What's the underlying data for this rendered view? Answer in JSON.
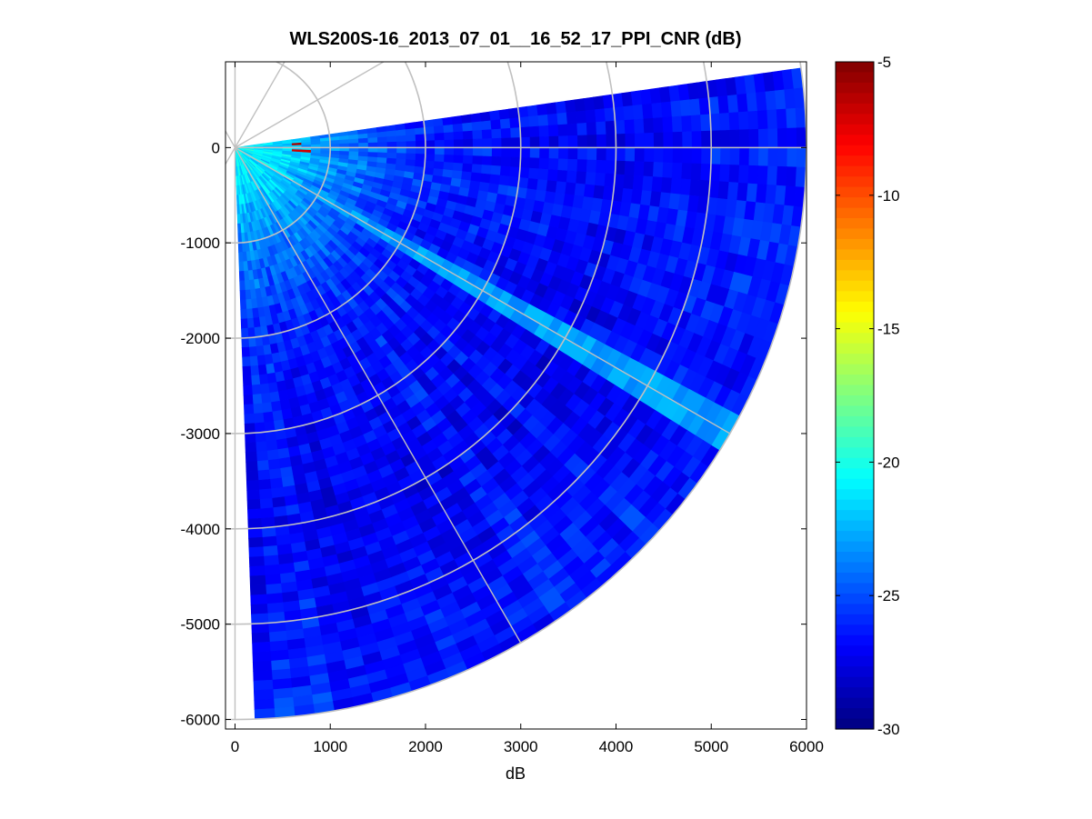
{
  "chart_data": {
    "type": "heatmap",
    "title": "WLS200S-16_2013_07_01__16_52_17_PPI_CNR (dB)",
    "xlabel": "dB",
    "ylabel": "",
    "xlim": [
      -100,
      6000
    ],
    "ylim": [
      -6100,
      900
    ],
    "x_ticks": [
      0,
      1000,
      2000,
      3000,
      4000,
      5000,
      6000
    ],
    "y_ticks": [
      0,
      -1000,
      -2000,
      -3000,
      -4000,
      -5000,
      -6000
    ],
    "x_tick_labels": [
      "0",
      "1000",
      "2000",
      "3000",
      "4000",
      "5000",
      "6000"
    ],
    "y_tick_labels": [
      "0",
      "-1000",
      "-2000",
      "-3000",
      "-4000",
      "-5000",
      "-6000"
    ],
    "scan": {
      "type": "PPI sector",
      "azimuth_start_deg_from_east": 8,
      "azimuth_end_deg_from_east": -88,
      "max_range": 6000
    },
    "polar_grid": {
      "range_rings": [
        1000,
        2000,
        3000,
        4000,
        5000,
        6000
      ],
      "spoke_angles_deg": [
        0,
        30,
        60,
        90,
        120,
        -30,
        -60,
        -90,
        -120
      ]
    },
    "colorbar": {
      "colormap": "jet",
      "clim": [
        -30,
        -5
      ],
      "ticks": [
        -5,
        -10,
        -15,
        -20,
        -25,
        -30
      ],
      "tick_labels": [
        "-5",
        "-10",
        "-15",
        "-20",
        "-25",
        "-30"
      ]
    },
    "cnr_profile_by_range": [
      {
        "range": 0,
        "cnr": -20.5
      },
      {
        "range": 500,
        "cnr": -21.5
      },
      {
        "range": 1000,
        "cnr": -23.5
      },
      {
        "range": 2000,
        "cnr": -26
      },
      {
        "range": 3000,
        "cnr": -26.5
      },
      {
        "range": 4000,
        "cnr": -27
      },
      {
        "range": 5000,
        "cnr": -26.5
      },
      {
        "range": 6000,
        "cnr": -26
      }
    ],
    "features": [
      {
        "description": "hot spot",
        "range": 650,
        "azimuth_deg": 3,
        "cnr": -6
      },
      {
        "description": "hot spot",
        "range": 700,
        "azimuth_deg": -3,
        "cnr": -7
      },
      {
        "description": "enhanced streak",
        "azimuth_deg": -30,
        "cnr": -23
      }
    ]
  }
}
